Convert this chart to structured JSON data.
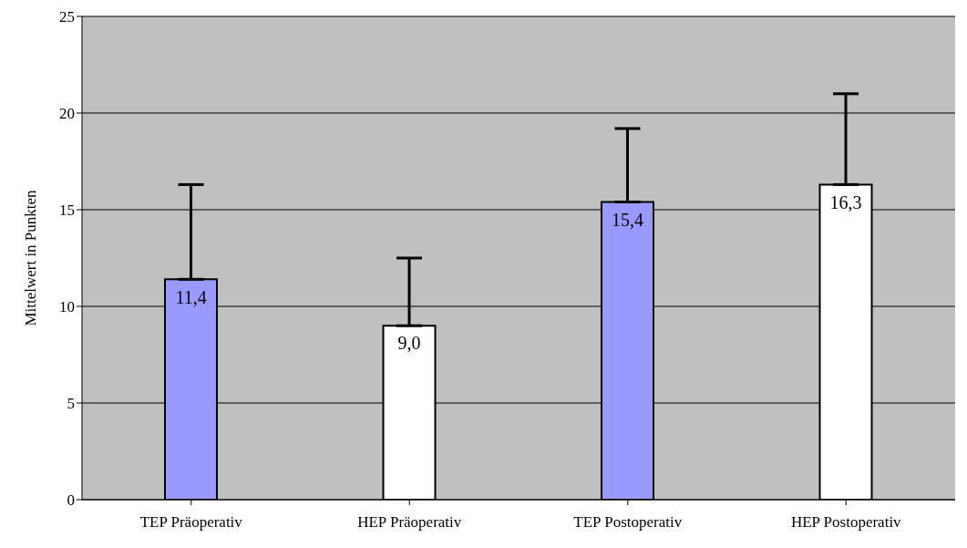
{
  "chart_data": {
    "type": "bar",
    "ylabel": "Mittelwert in Punkten",
    "categories": [
      "TEP Präoperativ",
      "HEP Präoperativ",
      "TEP Postoperativ",
      "HEP Postoperativ"
    ],
    "values": [
      11.4,
      9.0,
      15.4,
      16.3
    ],
    "colors": [
      "#9999ff",
      "#ffffff",
      "#9999ff",
      "#ffffff"
    ],
    "errors": [
      [
        11.4,
        16.3
      ],
      [
        9.0,
        12.5
      ],
      [
        15.4,
        19.2
      ],
      [
        16.3,
        21.0
      ]
    ],
    "value_labels": [
      "11,4",
      "9,0",
      "15,4",
      "16,3"
    ],
    "ylim": [
      0,
      25
    ],
    "yticks": [
      0,
      5,
      10,
      15,
      20,
      25
    ],
    "grid": "y"
  }
}
